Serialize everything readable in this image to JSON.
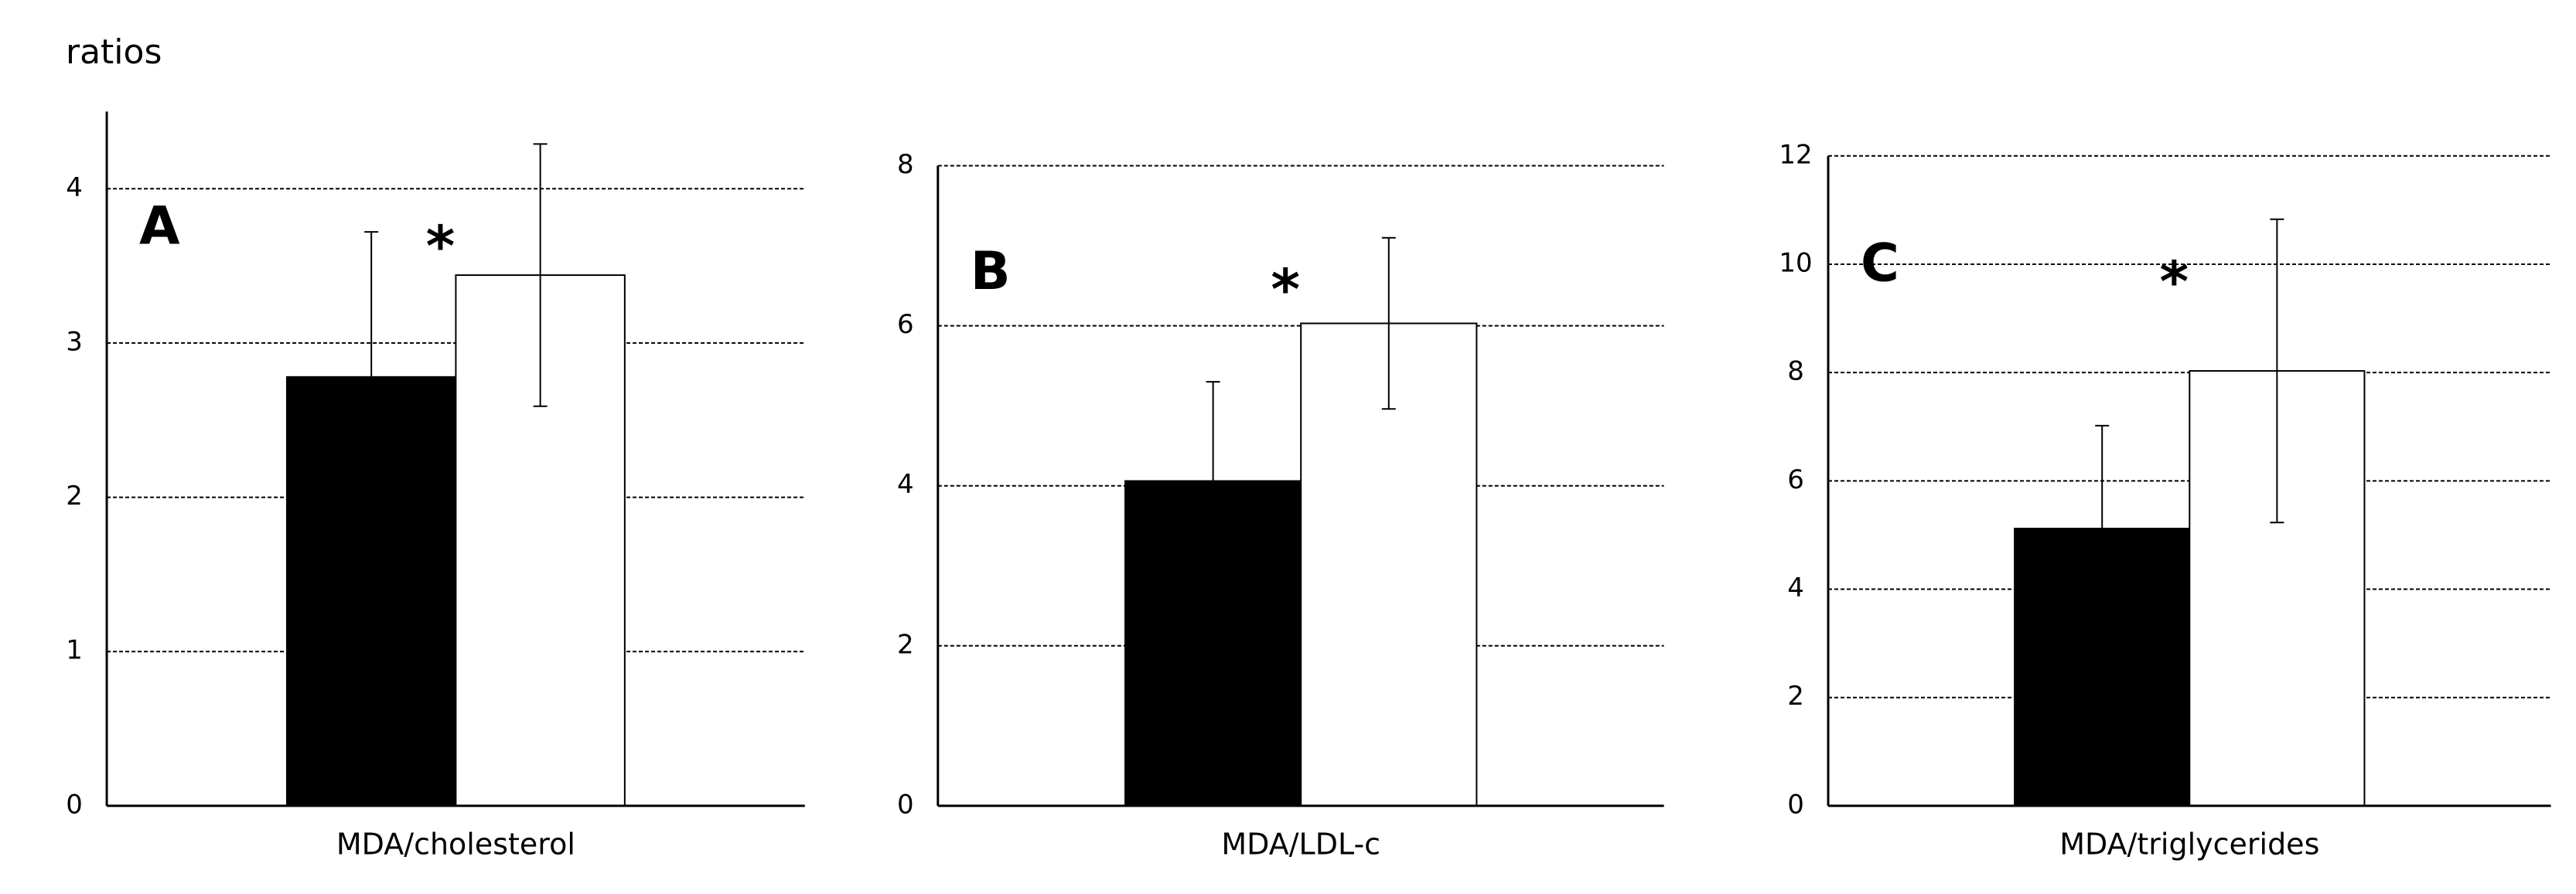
{
  "axis_label": "ratios",
  "chart_data": [
    {
      "type": "bar",
      "panel_label": "A",
      "annotation": "*",
      "categories": [
        "MDA/cholesterol"
      ],
      "series": [
        {
          "color": "#000000",
          "values": [
            2.78
          ],
          "errors": [
            0.94
          ]
        },
        {
          "color": "#ffffff",
          "values": [
            3.44
          ],
          "errors": [
            0.85
          ]
        }
      ],
      "ylim": [
        0,
        4.5
      ],
      "yticks": [
        0,
        1,
        2,
        3,
        4
      ],
      "grid": true
    },
    {
      "type": "bar",
      "panel_label": "B",
      "annotation": "*",
      "categories": [
        "MDA/LDL-c"
      ],
      "series": [
        {
          "color": "#000000",
          "values": [
            4.06
          ],
          "errors": [
            1.24
          ]
        },
        {
          "color": "#ffffff",
          "values": [
            6.03
          ],
          "errors": [
            1.07
          ]
        }
      ],
      "ylim": [
        0,
        8
      ],
      "yticks": [
        0,
        2,
        4,
        6,
        8
      ],
      "grid": true
    },
    {
      "type": "bar",
      "panel_label": "C",
      "annotation": "*",
      "categories": [
        "MDA/triglycerides"
      ],
      "series": [
        {
          "color": "#000000",
          "values": [
            5.12
          ],
          "errors": [
            1.9
          ]
        },
        {
          "color": "#ffffff",
          "values": [
            8.03
          ],
          "errors": [
            2.8
          ]
        }
      ],
      "ylim": [
        0,
        12
      ],
      "yticks": [
        0,
        2,
        4,
        6,
        8,
        10,
        12
      ],
      "grid": true
    }
  ]
}
